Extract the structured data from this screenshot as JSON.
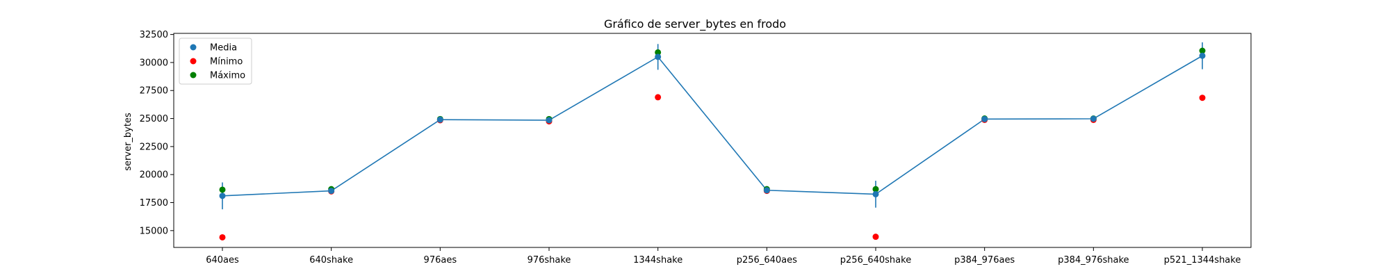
{
  "chart_data": {
    "type": "line",
    "title": "Gráfico de server_bytes en frodo",
    "xlabel": "",
    "ylabel": "server_bytes",
    "ylim": [
      13500,
      32600
    ],
    "yticks": [
      15000,
      17500,
      20000,
      22500,
      25000,
      27500,
      30000,
      32500
    ],
    "categories": [
      "640aes",
      "640shake",
      "976aes",
      "976shake",
      "1344shake",
      "p256_640aes",
      "p256_640shake",
      "p384_976aes",
      "p384_976shake",
      "p521_1344shake"
    ],
    "series": [
      {
        "name": "Media",
        "color": "#1f77b4",
        "values": [
          18100,
          18550,
          24900,
          24850,
          30500,
          18600,
          18250,
          24950,
          24980,
          30600
        ],
        "error": [
          1200,
          120,
          80,
          100,
          1150,
          100,
          1200,
          100,
          90,
          1200
        ]
      },
      {
        "name": "Mínimo",
        "color": "#ff0000",
        "values": [
          14400,
          18500,
          24850,
          24750,
          26900,
          18550,
          14450,
          24880,
          24880,
          26850
        ]
      },
      {
        "name": "Máximo",
        "color": "#008000",
        "values": [
          18650,
          18700,
          24950,
          24950,
          30900,
          18700,
          18700,
          25000,
          25000,
          31050
        ]
      }
    ],
    "grid": false,
    "legend_position": "top-left"
  }
}
